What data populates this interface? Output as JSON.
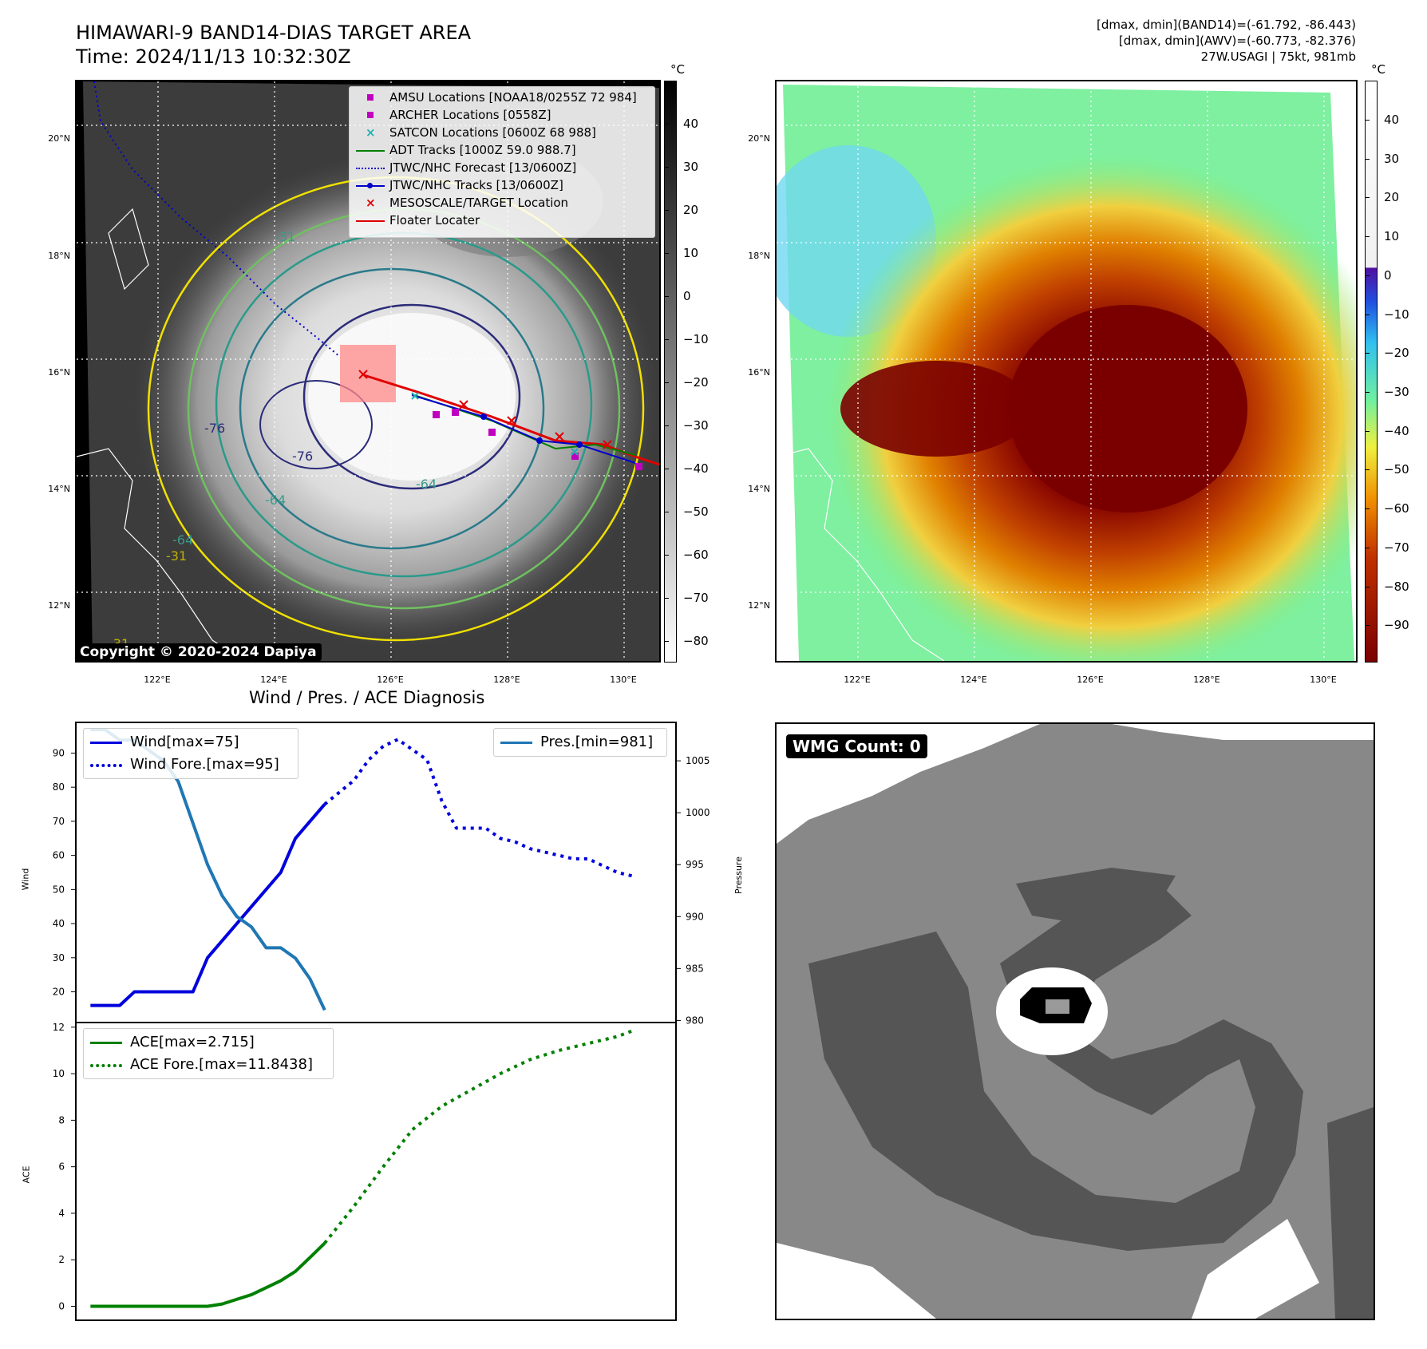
{
  "header": {
    "title_line1": "HIMAWARI-9 BAND14-DIAS TARGET AREA",
    "title_line2": "Time: 2024/11/13 10:32:30Z",
    "stats_line1": "[dmax, dmin](BAND14)=(-61.792, -86.443)",
    "stats_line2": "[dmax, dmin](AWV)=(-60.773, -82.376)",
    "stats_line3": "27W.USAGI | 75kt, 981mb"
  },
  "map": {
    "lat_labels": [
      "20°N",
      "18°N",
      "16°N",
      "14°N",
      "12°N"
    ],
    "lon_labels": [
      "122°E",
      "124°E",
      "126°E",
      "128°E",
      "130°E"
    ],
    "copyright": "Copyright © 2020-2024 Dapiya",
    "contour_labels": [
      "-31",
      "-64",
      "-64",
      "-76",
      "-76",
      "-64",
      "-31",
      "-31"
    ],
    "legend": [
      {
        "marker": "square",
        "color": "#c000c0",
        "label": "AMSU Locations [NOAA18/0255Z 72 984]"
      },
      {
        "marker": "square",
        "color": "#c000c0",
        "label": "ARCHER Locations [0558Z]"
      },
      {
        "marker": "x",
        "color": "#20b0b0",
        "label": "SATCON Locations [0600Z 68 988]"
      },
      {
        "marker": "line",
        "color": "#008000",
        "label": "ADT Tracks [1000Z 59.0 988.7]"
      },
      {
        "marker": "dotted",
        "color": "#0000cc",
        "label": "JTWC/NHC Forecast [13/0600Z]"
      },
      {
        "marker": "line-dot",
        "color": "#0000cc",
        "label": "JTWC/NHC Tracks [13/0600Z]"
      },
      {
        "marker": "x",
        "color": "#e00000",
        "label": "MESOSCALE/TARGET Location"
      },
      {
        "marker": "line",
        "color": "#e00000",
        "label": "Floater Locater"
      }
    ]
  },
  "colorbars": {
    "unit": "°C",
    "gray_ticks": [
      "40",
      "30",
      "20",
      "10",
      "0",
      "−10",
      "−20",
      "−30",
      "−40",
      "−50",
      "−60",
      "−70",
      "−80"
    ],
    "color_ticks": [
      "40",
      "30",
      "20",
      "10",
      "0",
      "−10",
      "−20",
      "−30",
      "−40",
      "−50",
      "−60",
      "−70",
      "−80",
      "−90"
    ]
  },
  "wmg": {
    "badge": "WMG Count: 0"
  },
  "chart_data": [
    {
      "type": "line",
      "title": "Wind / Pres. / ACE Diagnosis",
      "ylabel": "Wind",
      "ylim": [
        11,
        99
      ],
      "yticks": [
        20,
        30,
        40,
        50,
        60,
        70,
        80,
        90
      ],
      "xlim": [
        0,
        41
      ],
      "y2label": "Pressure",
      "y2lim": [
        979.8,
        1008.7
      ],
      "y2ticks": [
        980,
        985,
        990,
        995,
        1000,
        1005
      ],
      "series": [
        {
          "name": "Wind[max=75]",
          "axis": "left",
          "color": "#0000dd",
          "style": "solid",
          "x": [
            1,
            3,
            4,
            6,
            8,
            9,
            11,
            12,
            14,
            15,
            17
          ],
          "y": [
            16,
            16,
            20,
            20,
            20,
            30,
            40,
            45,
            55,
            65,
            75
          ]
        },
        {
          "name": "Wind Fore.[max=95]",
          "axis": "left",
          "color": "#0000dd",
          "style": "dotted",
          "x": [
            17,
            19,
            20,
            21,
            22,
            24,
            25,
            26,
            27,
            28,
            29,
            30,
            31,
            32,
            33,
            34,
            35,
            37,
            38
          ],
          "y": [
            75,
            82,
            88,
            92,
            94,
            88,
            76,
            68,
            68,
            68,
            65,
            64,
            62,
            61,
            60,
            59,
            59,
            55,
            54
          ]
        },
        {
          "name": "Pres.[min=981]",
          "axis": "right",
          "color": "#1f77b4",
          "style": "solid",
          "x": [
            1,
            2,
            3,
            4,
            5,
            6,
            7,
            8,
            9,
            10,
            11,
            12,
            13,
            14,
            15,
            16,
            17
          ],
          "y": [
            1008,
            1008,
            1007,
            1007,
            1006,
            1005,
            1003,
            999,
            995,
            992,
            990,
            989,
            987,
            987,
            986,
            984,
            981
          ]
        }
      ]
    },
    {
      "type": "line",
      "ylabel": "ACE",
      "ylim": [
        -0.6,
        12.2
      ],
      "yticks": [
        0,
        2,
        4,
        6,
        8,
        10,
        12
      ],
      "xlim": [
        0,
        41
      ],
      "series": [
        {
          "name": "ACE[max=2.715]",
          "color": "#008000",
          "style": "solid",
          "x": [
            1,
            3,
            5,
            7,
            9,
            10,
            11,
            12,
            13,
            14,
            15,
            16,
            17
          ],
          "y": [
            0,
            0,
            0,
            0,
            0,
            0.1,
            0.3,
            0.5,
            0.8,
            1.1,
            1.5,
            2.1,
            2.715
          ]
        },
        {
          "name": "ACE Fore.[max=11.8438]",
          "color": "#008000",
          "style": "dotted",
          "x": [
            17,
            19,
            21,
            23,
            25,
            27,
            29,
            31,
            33,
            35,
            37,
            38
          ],
          "y": [
            2.715,
            4.3,
            6.0,
            7.6,
            8.6,
            9.3,
            10.0,
            10.6,
            11.0,
            11.3,
            11.6,
            11.84
          ]
        }
      ]
    }
  ]
}
